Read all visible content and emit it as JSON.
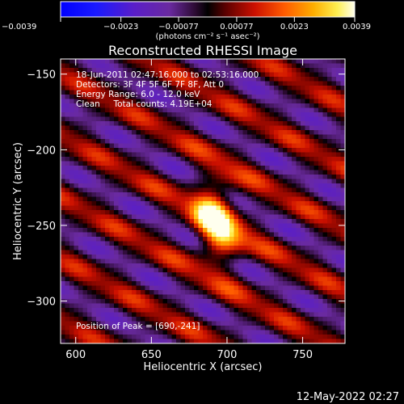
{
  "chart_data": {
    "type": "heatmap",
    "title": "Reconstructed RHESSI Image",
    "xlabel": "Heliocentric X (arcsec)",
    "ylabel": "Heliocentric Y (arcsec)",
    "xlim": [
      590,
      778
    ],
    "ylim": [
      -328,
      -140
    ],
    "x_ticks": [
      600,
      650,
      700,
      750
    ],
    "y_ticks": [
      -150,
      -200,
      -250,
      -300
    ],
    "colorbar": {
      "min": -0.0039,
      "max": 0.0039,
      "tick_values": [
        -0.0039,
        -0.0023,
        -0.00077,
        0.00077,
        0.0023,
        0.0039
      ],
      "tick_labels": [
        "-0.0039",
        "-0.0023",
        "-0.00077",
        "0.00077",
        "0.0023",
        "0.0039"
      ],
      "unit_label": "(photons cm⁻² s⁻¹ asec⁻²)"
    },
    "annotations": [
      "18-Jun-2011 02:47:16.000 to 02:53:16.000",
      "Detectors: 3F 4F 5F 6F 7F 8F, Att 0",
      "Energy Range: 6.0 - 12.0 keV",
      "Clean     Total counts: 4.19E+04"
    ],
    "peak_label": "Position of Peak = [690,-241]",
    "peak": {
      "x": 690,
      "y": -241
    },
    "timestamp": "12-May-2022 02:27"
  }
}
